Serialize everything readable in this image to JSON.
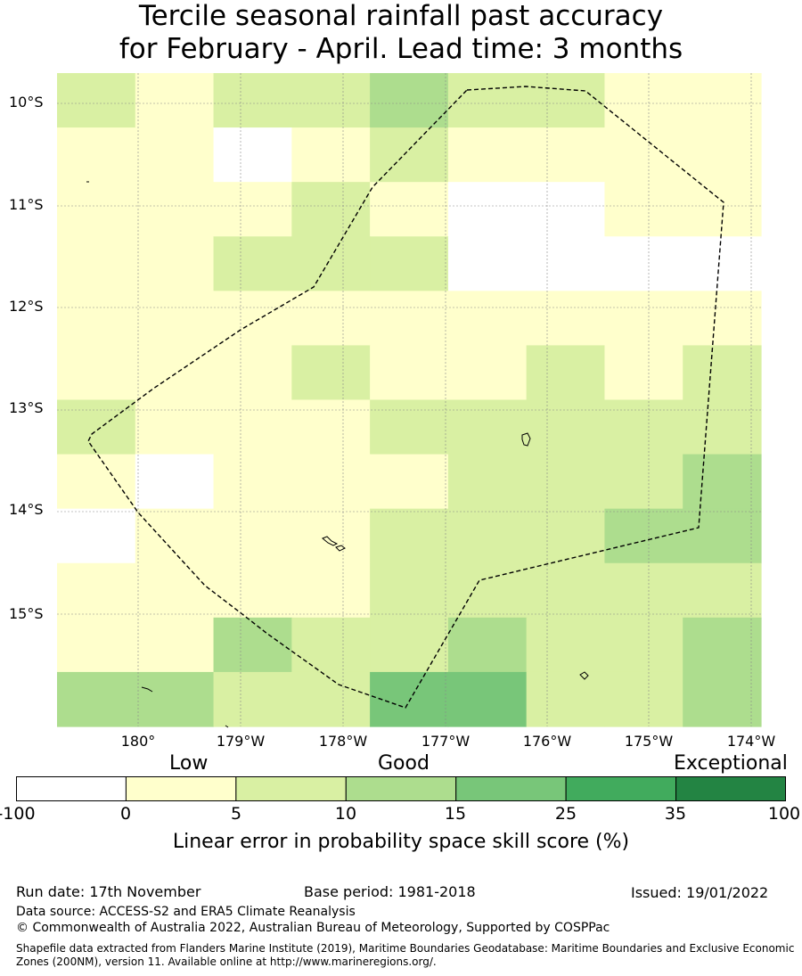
{
  "title": {
    "line1": "Tercile seasonal rainfall past accuracy",
    "line2": "for February - April. Lead time: 3 months"
  },
  "map": {
    "lat_labels": [
      "10°S",
      "11°S",
      "12°S",
      "13°S",
      "14°S",
      "15°S"
    ],
    "lon_labels": [
      "180°",
      "179°W",
      "178°W",
      "177°W",
      "176°W",
      "175°W",
      "174°W"
    ],
    "grid_rows": [
      [
        2,
        1,
        2,
        2,
        3,
        2,
        2,
        1,
        1
      ],
      [
        1,
        1,
        0,
        1,
        2,
        1,
        1,
        1,
        1
      ],
      [
        1,
        1,
        1,
        2,
        1,
        0,
        0,
        1,
        1
      ],
      [
        1,
        1,
        2,
        2,
        2,
        0,
        0,
        0,
        0
      ],
      [
        1,
        1,
        1,
        1,
        1,
        1,
        1,
        1,
        1
      ],
      [
        1,
        1,
        1,
        2,
        1,
        1,
        2,
        1,
        2
      ],
      [
        2,
        1,
        1,
        1,
        2,
        2,
        2,
        2,
        2
      ],
      [
        1,
        0,
        1,
        1,
        1,
        2,
        2,
        2,
        3
      ],
      [
        0,
        1,
        1,
        1,
        2,
        2,
        2,
        3,
        3
      ],
      [
        1,
        1,
        1,
        1,
        2,
        2,
        2,
        2,
        2
      ],
      [
        1,
        1,
        3,
        2,
        2,
        3,
        2,
        2,
        3
      ],
      [
        3,
        3,
        2,
        2,
        4,
        4,
        2,
        2,
        3
      ]
    ],
    "cell_colors": [
      "#ffffff",
      "#ffffcc",
      "#d9f0a3",
      "#addd8e",
      "#78c679",
      "#41ab5d",
      "#238443"
    ]
  },
  "legend": {
    "categories": [
      "Low",
      "Good",
      "Exceptional"
    ],
    "ticks": [
      "-100",
      "0",
      "5",
      "10",
      "15",
      "25",
      "35",
      "100"
    ],
    "colors": [
      "#ffffff",
      "#ffffcc",
      "#d9f0a3",
      "#addd8e",
      "#78c679",
      "#41ab5d",
      "#238443"
    ],
    "title": "Linear error in probability space skill score (%)"
  },
  "footer": {
    "run_date": "Run date: 17th November",
    "base_period": "Base period: 1981-2018",
    "issued": "Issued: 19/01/2022",
    "data_source": "Data source: ACCESS-S2 and ERA5 Climate Reanalysis",
    "copyright": "© Commonwealth of Australia 2022, Australian Bureau of Meteorology, Supported by COSPPac",
    "shapefile": "Shapefile data extracted from Flanders Marine Institute (2019), Maritime Boundaries Geodatabase: Maritime Boundaries and Exclusive Economic Zones (200NM), version 11. Available online at http://www.marineregions.org/."
  }
}
